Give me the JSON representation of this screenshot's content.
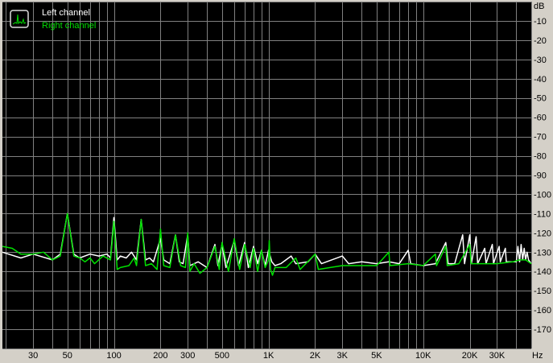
{
  "chart_data": {
    "type": "line",
    "title": "",
    "xlabel": "Hz",
    "ylabel": "dB",
    "x_scale": "log",
    "xlim": [
      19,
      50000
    ],
    "ylim": [
      -180,
      0
    ],
    "grid": true,
    "legend_position": "top-left",
    "background_color": "#000000",
    "grid_color": "#808080",
    "x_ticks": [
      {
        "value": 30,
        "label": "30"
      },
      {
        "value": 50,
        "label": "50"
      },
      {
        "value": 100,
        "label": "100"
      },
      {
        "value": 200,
        "label": "200"
      },
      {
        "value": 300,
        "label": "300"
      },
      {
        "value": 500,
        "label": "500"
      },
      {
        "value": 1000,
        "label": "1K"
      },
      {
        "value": 2000,
        "label": "2K"
      },
      {
        "value": 3000,
        "label": "3K"
      },
      {
        "value": 5000,
        "label": "5K"
      },
      {
        "value": 10000,
        "label": "10K"
      },
      {
        "value": 20000,
        "label": "20K"
      },
      {
        "value": 30000,
        "label": "30K"
      }
    ],
    "y_ticks": [
      {
        "value": -10,
        "label": "-10"
      },
      {
        "value": -20,
        "label": "-20"
      },
      {
        "value": -30,
        "label": "-30"
      },
      {
        "value": -40,
        "label": "-40"
      },
      {
        "value": -50,
        "label": "-50"
      },
      {
        "value": -60,
        "label": "-60"
      },
      {
        "value": -70,
        "label": "-70"
      },
      {
        "value": -80,
        "label": "-80"
      },
      {
        "value": -90,
        "label": "-90"
      },
      {
        "value": -100,
        "label": "-100"
      },
      {
        "value": -110,
        "label": "-110"
      },
      {
        "value": -120,
        "label": "-120"
      },
      {
        "value": -130,
        "label": "-130"
      },
      {
        "value": -140,
        "label": "-140"
      },
      {
        "value": -150,
        "label": "-150"
      },
      {
        "value": -160,
        "label": "-160"
      },
      {
        "value": -170,
        "label": "-170"
      }
    ],
    "series": [
      {
        "name": "Left channel",
        "color": "#ffffff",
        "points": [
          [
            19,
            -130
          ],
          [
            25,
            -133
          ],
          [
            30,
            -131
          ],
          [
            40,
            -134
          ],
          [
            45,
            -131
          ],
          [
            50,
            -110
          ],
          [
            55,
            -131
          ],
          [
            60,
            -133
          ],
          [
            70,
            -131
          ],
          [
            80,
            -132
          ],
          [
            90,
            -131
          ],
          [
            95,
            -133
          ],
          [
            100,
            -112
          ],
          [
            105,
            -134
          ],
          [
            110,
            -132
          ],
          [
            120,
            -133
          ],
          [
            130,
            -130
          ],
          [
            140,
            -134
          ],
          [
            150,
            -113
          ],
          [
            160,
            -134
          ],
          [
            170,
            -133
          ],
          [
            180,
            -135
          ],
          [
            200,
            -123
          ],
          [
            210,
            -134
          ],
          [
            230,
            -136
          ],
          [
            250,
            -121
          ],
          [
            265,
            -135
          ],
          [
            280,
            -136
          ],
          [
            300,
            -121
          ],
          [
            310,
            -137
          ],
          [
            350,
            -135
          ],
          [
            400,
            -138
          ],
          [
            450,
            -126
          ],
          [
            470,
            -137
          ],
          [
            500,
            -126
          ],
          [
            530,
            -138
          ],
          [
            600,
            -124
          ],
          [
            640,
            -137
          ],
          [
            700,
            -125
          ],
          [
            740,
            -138
          ],
          [
            800,
            -127
          ],
          [
            850,
            -136
          ],
          [
            900,
            -129
          ],
          [
            950,
            -137
          ],
          [
            1000,
            -129
          ],
          [
            1050,
            -135
          ],
          [
            1100,
            -137
          ],
          [
            1200,
            -136
          ],
          [
            1400,
            -132
          ],
          [
            1500,
            -136
          ],
          [
            1800,
            -135
          ],
          [
            2000,
            -131
          ],
          [
            2200,
            -136
          ],
          [
            3000,
            -132
          ],
          [
            3300,
            -136
          ],
          [
            4000,
            -135
          ],
          [
            5000,
            -136
          ],
          [
            6000,
            -135
          ],
          [
            7000,
            -136
          ],
          [
            8000,
            -129
          ],
          [
            8300,
            -136
          ],
          [
            10000,
            -137
          ],
          [
            12000,
            -136
          ],
          [
            14000,
            -125
          ],
          [
            14500,
            -136
          ],
          [
            16000,
            -136
          ],
          [
            18000,
            -121
          ],
          [
            18500,
            -136
          ],
          [
            20000,
            -121
          ],
          [
            20500,
            -136
          ],
          [
            22000,
            -122
          ],
          [
            22500,
            -136
          ],
          [
            25000,
            -128
          ],
          [
            25500,
            -136
          ],
          [
            28000,
            -126
          ],
          [
            28500,
            -136
          ],
          [
            31000,
            -127
          ],
          [
            31500,
            -135
          ],
          [
            34000,
            -128
          ],
          [
            34500,
            -135
          ],
          [
            40000,
            -135
          ],
          [
            41000,
            -127
          ],
          [
            42000,
            -135
          ],
          [
            43000,
            -126
          ],
          [
            44000,
            -134
          ],
          [
            45000,
            -128
          ],
          [
            46000,
            -134
          ],
          [
            47000,
            -130
          ],
          [
            48000,
            -134
          ],
          [
            50000,
            -136
          ]
        ]
      },
      {
        "name": "Right channel",
        "color": "#00e000",
        "points": [
          [
            19,
            -127
          ],
          [
            22,
            -128
          ],
          [
            25,
            -131
          ],
          [
            30,
            -131
          ],
          [
            35,
            -130
          ],
          [
            40,
            -134
          ],
          [
            45,
            -132
          ],
          [
            50,
            -110
          ],
          [
            55,
            -132
          ],
          [
            60,
            -133
          ],
          [
            65,
            -135
          ],
          [
            70,
            -133
          ],
          [
            75,
            -136
          ],
          [
            85,
            -132
          ],
          [
            95,
            -134
          ],
          [
            100,
            -114
          ],
          [
            105,
            -139
          ],
          [
            110,
            -138
          ],
          [
            125,
            -137
          ],
          [
            135,
            -133
          ],
          [
            140,
            -137
          ],
          [
            150,
            -113
          ],
          [
            160,
            -137
          ],
          [
            175,
            -136
          ],
          [
            190,
            -139
          ],
          [
            200,
            -118
          ],
          [
            210,
            -137
          ],
          [
            230,
            -138
          ],
          [
            250,
            -121
          ],
          [
            270,
            -137
          ],
          [
            290,
            -138
          ],
          [
            300,
            -120
          ],
          [
            310,
            -140
          ],
          [
            330,
            -136
          ],
          [
            360,
            -141
          ],
          [
            400,
            -138
          ],
          [
            450,
            -127
          ],
          [
            480,
            -139
          ],
          [
            500,
            -125
          ],
          [
            550,
            -140
          ],
          [
            600,
            -123
          ],
          [
            650,
            -139
          ],
          [
            700,
            -126
          ],
          [
            760,
            -138
          ],
          [
            800,
            -128
          ],
          [
            850,
            -140
          ],
          [
            900,
            -129
          ],
          [
            950,
            -138
          ],
          [
            1000,
            -134
          ],
          [
            1010,
            -124
          ],
          [
            1030,
            -139
          ],
          [
            1060,
            -142
          ],
          [
            1100,
            -138
          ],
          [
            1300,
            -138
          ],
          [
            1500,
            -133
          ],
          [
            1600,
            -139
          ],
          [
            2000,
            -131
          ],
          [
            2100,
            -139
          ],
          [
            2500,
            -138
          ],
          [
            3000,
            -137
          ],
          [
            4000,
            -137
          ],
          [
            5000,
            -137
          ],
          [
            6000,
            -130
          ],
          [
            6100,
            -137
          ],
          [
            8000,
            -136
          ],
          [
            10000,
            -137
          ],
          [
            12000,
            -131
          ],
          [
            12200,
            -137
          ],
          [
            14000,
            -127
          ],
          [
            14300,
            -137
          ],
          [
            17000,
            -136
          ],
          [
            20000,
            -126
          ],
          [
            20400,
            -136
          ],
          [
            25000,
            -136
          ],
          [
            30000,
            -136
          ],
          [
            38000,
            -135
          ],
          [
            42000,
            -134
          ],
          [
            46000,
            -134
          ],
          [
            50000,
            -136
          ]
        ]
      }
    ]
  }
}
